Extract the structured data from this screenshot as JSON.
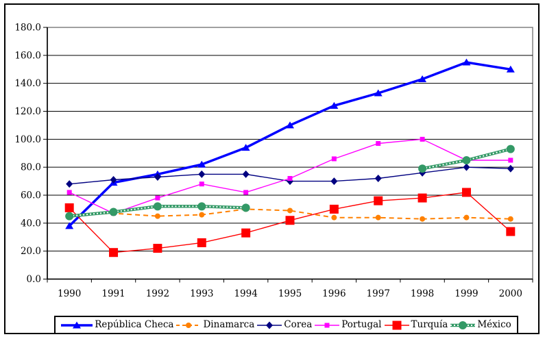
{
  "chart_data": {
    "type": "line",
    "categories": [
      "1990",
      "1991",
      "1992",
      "1993",
      "1994",
      "1995",
      "1996",
      "1997",
      "1998",
      "1999",
      "2000"
    ],
    "series": [
      {
        "name": "República Checa",
        "color": "#0000FF",
        "marker": "triangle",
        "line": "solid-thick",
        "values": [
          38,
          69,
          75,
          82,
          94,
          110,
          124,
          133,
          143,
          155,
          150
        ]
      },
      {
        "name": "Dinamarca",
        "color": "#FF8000",
        "marker": "circle",
        "line": "dashed",
        "values": [
          46,
          47,
          45,
          46,
          50,
          49,
          44,
          44,
          43,
          44,
          43
        ]
      },
      {
        "name": "Corea",
        "color": "#000080",
        "marker": "diamond",
        "line": "solid-thin",
        "values": [
          68,
          71,
          73,
          75,
          75,
          70,
          70,
          72,
          76,
          80,
          79
        ]
      },
      {
        "name": "Portugal",
        "color": "#FF00FF",
        "marker": "square-small",
        "line": "solid-thin",
        "values": [
          62,
          47,
          58,
          68,
          62,
          72,
          86,
          97,
          100,
          85,
          85
        ]
      },
      {
        "name": "Turquía",
        "color": "#FF0000",
        "marker": "square-large",
        "line": "solid-thin",
        "values": [
          51,
          19,
          22,
          26,
          33,
          42,
          50,
          56,
          58,
          62,
          34
        ]
      },
      {
        "name": "México",
        "color": "#339966",
        "marker": "circle-large",
        "line": "beaded",
        "values": [
          45,
          48,
          52,
          52,
          51,
          null,
          null,
          null,
          79,
          85,
          93
        ]
      }
    ],
    "title": "",
    "xlabel": "",
    "ylabel": "",
    "ylim": [
      0,
      180
    ],
    "y_ticks": [
      "0.0",
      "20.0",
      "40.0",
      "60.0",
      "80.0",
      "100.0",
      "120.0",
      "140.0",
      "160.0",
      "180.0"
    ],
    "grid": true,
    "legend_position": "bottom",
    "plot_border_color": "#808080",
    "gridline_color": "#000000",
    "background_color": "#FFFFFF"
  }
}
